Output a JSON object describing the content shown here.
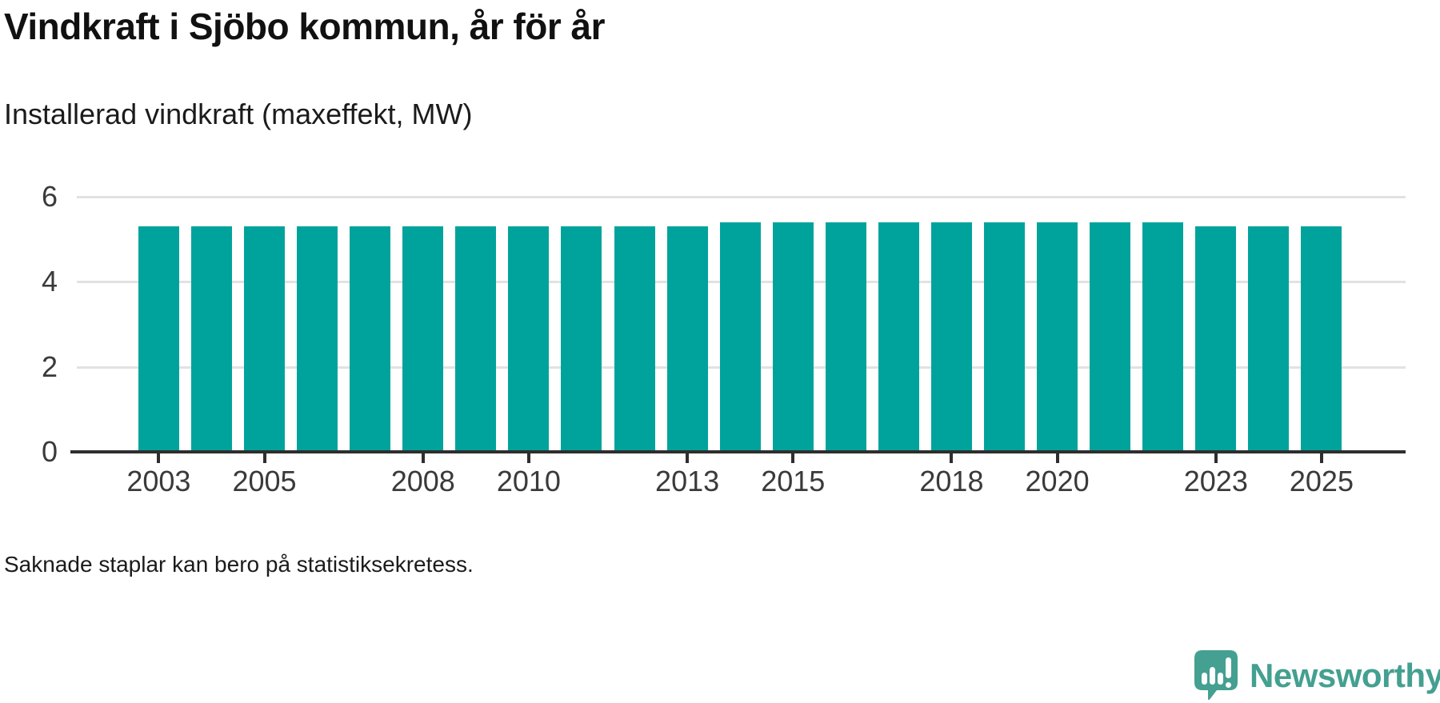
{
  "header": {
    "title": "Vindkraft i Sjöbo kommun, år för år",
    "subtitle": "Installerad vindkraft (maxeffekt, MW)"
  },
  "footer": {
    "note": "Saknade staplar kan bero på statistiksekretess."
  },
  "branding": {
    "logo_text": "Newsworthy",
    "logo_icon": "speech-bubble-with-bar-chart-and-exclamation",
    "logo_color": "#44a090"
  },
  "colors": {
    "bar": "#00a39b",
    "axis": "#2e2e2e",
    "gridline": "#e2e2e2",
    "tick_label": "#3a3a3a"
  },
  "chart_data": {
    "type": "bar",
    "title": "Vindkraft i Sjöbo kommun, år för år",
    "subtitle": "Installerad vindkraft (maxeffekt, MW)",
    "ylabel": "MW",
    "xlabel": "",
    "x": [
      2003,
      2004,
      2005,
      2006,
      2007,
      2008,
      2009,
      2010,
      2011,
      2012,
      2013,
      2014,
      2015,
      2016,
      2017,
      2018,
      2019,
      2020,
      2021,
      2022,
      2023,
      2024,
      2025
    ],
    "values": [
      5.3,
      5.3,
      5.3,
      5.3,
      5.3,
      5.3,
      5.3,
      5.3,
      5.3,
      5.3,
      5.3,
      5.4,
      5.4,
      5.4,
      5.4,
      5.4,
      5.4,
      5.4,
      5.4,
      5.4,
      5.3,
      5.3,
      5.3
    ],
    "ylim": [
      0,
      6
    ],
    "yticks": [
      0,
      2,
      4,
      6
    ],
    "ytick_labels": [
      "0",
      "2",
      "4",
      "6"
    ],
    "x_tick_labels": [
      "2003",
      "2005",
      "2008",
      "2010",
      "2013",
      "2015",
      "2018",
      "2020",
      "2023",
      "2025"
    ],
    "grid": "horizontal-lines-behind-bars",
    "legend": "none",
    "note": "Saknade staplar kan bero på statistiksekretess."
  }
}
